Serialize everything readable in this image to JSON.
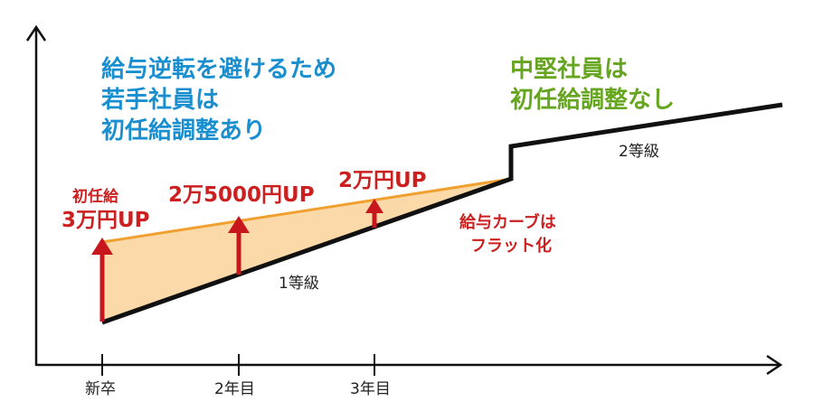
{
  "notes": {
    "left": [
      "給与逆転を避けるため",
      "若手社員は",
      "初任給調整あり"
    ],
    "right": [
      "中堅社員は",
      "初任給調整なし"
    ]
  },
  "grades": {
    "grade1": "1等級",
    "grade2": "2等級"
  },
  "x_ticks": [
    "新卒",
    "2年目",
    "3年目"
  ],
  "raises": {
    "first_title": "初任給",
    "first_amount": "3万円UP",
    "second": "2万5000円UP",
    "third": "2万円UP"
  },
  "curve_note": [
    "給与カーブは",
    "フラット化"
  ],
  "colors": {
    "axis": "#111111",
    "salary_line": "#111111",
    "adjusted_line": "#f0a030",
    "fill": "#fbd9a8",
    "arrow": "#c8161d",
    "blue_text": "#1a8fd0",
    "green_text": "#66a51f"
  }
}
